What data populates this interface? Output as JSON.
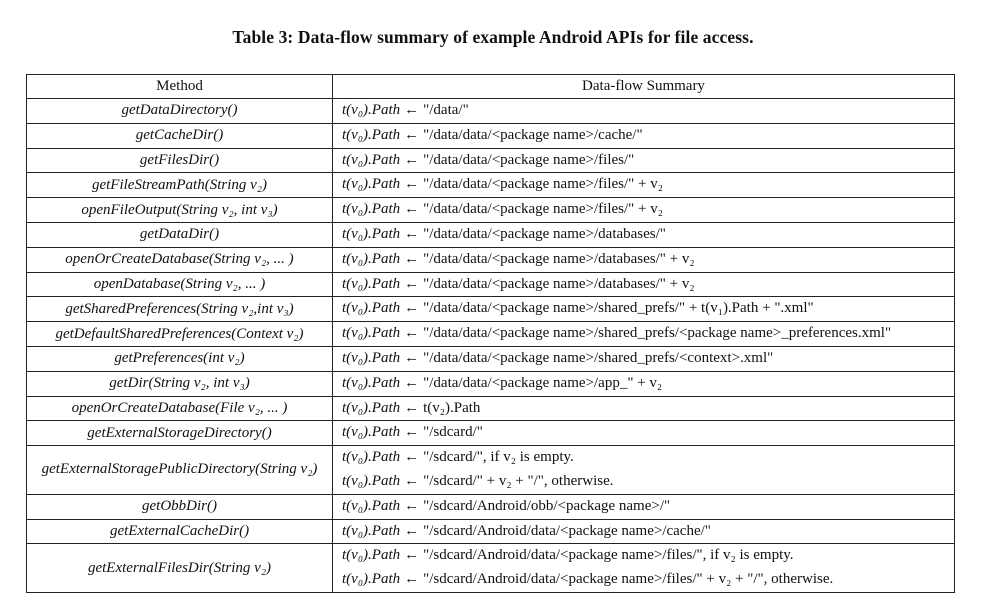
{
  "caption": "Table 3: Data-flow summary of example Android APIs for file access.",
  "headers": {
    "method": "Method",
    "summary": "Data-flow Summary"
  },
  "lhs": "t(v₀).Path",
  "arrow": "←",
  "rows": [
    {
      "method": "getDataDirectory()",
      "lines": [
        "\"/data/\""
      ]
    },
    {
      "method": "getCacheDir()",
      "lines": [
        "\"/data/data/<package name>/cache/\""
      ]
    },
    {
      "method": "getFilesDir()",
      "lines": [
        "\"/data/data/<package name>/files/\""
      ]
    },
    {
      "method": "getFileStreamPath(String v₂)",
      "lines": [
        "\"/data/data/<package name>/files/\" + v₂"
      ]
    },
    {
      "method": "openFileOutput(String v₂, int v₃)",
      "lines": [
        "\"/data/data/<package name>/files/\" + v₂"
      ]
    },
    {
      "method": "getDataDir()",
      "lines": [
        "\"/data/data/<package name>/databases/\""
      ]
    },
    {
      "method": "openOrCreateDatabase(String v₂, ... )",
      "lines": [
        "\"/data/data/<package name>/databases/\" + v₂"
      ]
    },
    {
      "method": "openDatabase(String v₂, ... )",
      "lines": [
        "\"/data/data/<package name>/databases/\" + v₂"
      ]
    },
    {
      "method": "getSharedPreferences(String v₂,int v₃)",
      "lines": [
        "\"/data/data/<package name>/shared_prefs/\" + t(v₁).Path + \".xml\""
      ]
    },
    {
      "method": "getDefaultSharedPreferences(Context v₂)",
      "lines": [
        "\"/data/data/<package name>/shared_prefs/<package name>_preferences.xml\""
      ]
    },
    {
      "method": "getPreferences(int v₂)",
      "lines": [
        "\"/data/data/<package name>/shared_prefs/<context>.xml\""
      ]
    },
    {
      "method": "getDir(String v₂, int v₃)",
      "lines": [
        "\"/data/data/<package name>/app_\" + v₂"
      ]
    },
    {
      "method": "openOrCreateDatabase(File v₂, ... )",
      "lines": [
        "t(v₂).Path"
      ]
    },
    {
      "method": "getExternalStorageDirectory()",
      "lines": [
        "\"/sdcard/\""
      ]
    },
    {
      "method": "getExternalStoragePublicDirectory(String v₂)",
      "lines": [
        "\"/sdcard/\", if v₂ is empty.",
        "\"/sdcard/\" + v₂ + \"/\", otherwise."
      ]
    },
    {
      "method": "getObbDir()",
      "lines": [
        "\"/sdcard/Android/obb/<package name>/\""
      ]
    },
    {
      "method": "getExternalCacheDir()",
      "lines": [
        "\"/sdcard/Android/data/<package name>/cache/\""
      ]
    },
    {
      "method": "getExternalFilesDir(String v₂)",
      "lines": [
        "\"/sdcard/Android/data/<package name>/files/\", if v₂ is empty.",
        "\"/sdcard/Android/data/<package name>/files/\" + v₂ + \"/\", otherwise."
      ]
    }
  ]
}
